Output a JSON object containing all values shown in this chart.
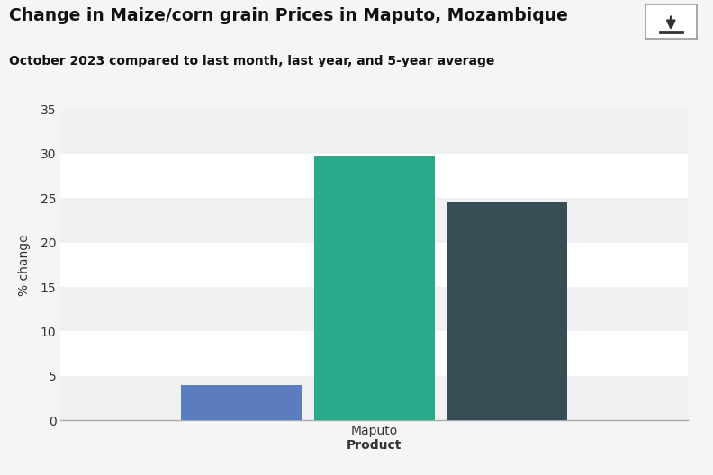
{
  "title": "Change in Maize/corn grain Prices in Maputo, Mozambique",
  "subtitle": "October 2023 compared to last month, last year, and 5-year average",
  "xlabel": "Product",
  "ylabel": "% change",
  "group_label": "Maputo",
  "bar_values": [
    4.0,
    29.8,
    24.5
  ],
  "bar_colors": [
    "#5b7dbf",
    "#2aaa8a",
    "#374c55"
  ],
  "bar_width": 0.2,
  "bar_offsets": [
    -0.22,
    0.0,
    0.22
  ],
  "ylim": [
    0,
    35
  ],
  "yticks": [
    0,
    5,
    10,
    15,
    20,
    25,
    30,
    35
  ],
  "bg_color": "#f5f5f5",
  "plot_bg_color": "#ffffff",
  "band_colors_even": "#ffffff",
  "band_colors_odd": "#f0f1f2",
  "title_fontsize": 13.5,
  "subtitle_fontsize": 10,
  "axis_label_fontsize": 10,
  "tick_fontsize": 10,
  "title_color": "#111111",
  "subtitle_color": "#111111",
  "bottom_spine_color": "#aaaaaa"
}
